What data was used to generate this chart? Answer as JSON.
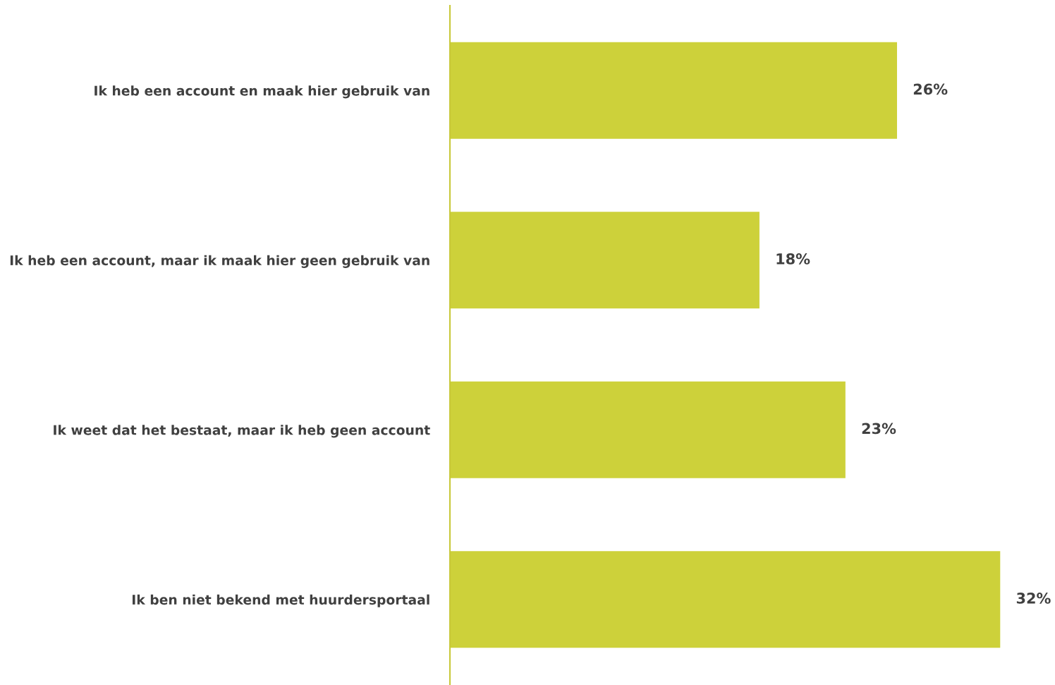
{
  "chart_data": {
    "type": "bar",
    "orientation": "horizontal",
    "categories": [
      "Ik heb een account en maak hier gebruik van",
      "Ik heb een account, maar ik maak hier geen gebruik van",
      "Ik weet dat het bestaat, maar ik heb geen account",
      "Ik ben niet bekend met huurdersportaal"
    ],
    "values": [
      26,
      18,
      23,
      32
    ],
    "value_labels": [
      "26%",
      "18%",
      "23%",
      "32%"
    ],
    "color": "#cdd13a",
    "tick_labels": "y",
    "grid": false,
    "legend": false
  }
}
